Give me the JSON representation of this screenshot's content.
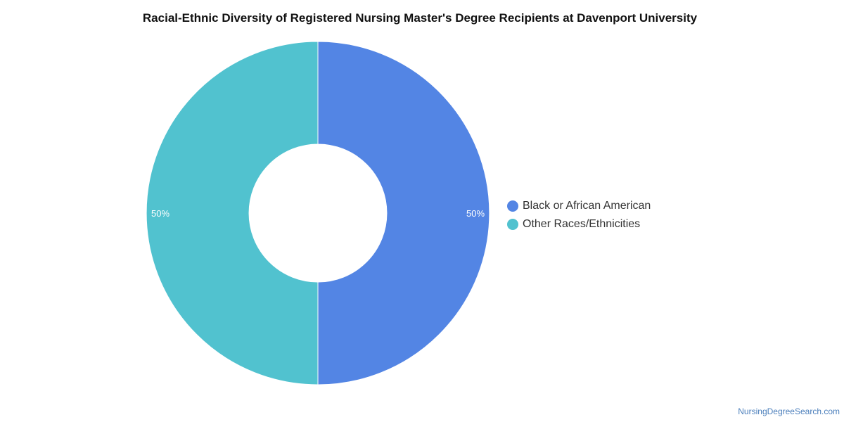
{
  "chart_data": {
    "type": "pie",
    "variant": "donut",
    "title": "Racial-Ethnic Diversity of Registered Nursing Master's Degree Recipients at Davenport University",
    "series": [
      {
        "name": "Black or African American",
        "value": 50,
        "label": "50%",
        "color": "#5385E4"
      },
      {
        "name": "Other Races/Ethnicities",
        "value": 50,
        "label": "50%",
        "color": "#51C2CF"
      }
    ],
    "legend": "right"
  },
  "credit": "NursingDegreeSearch.com"
}
